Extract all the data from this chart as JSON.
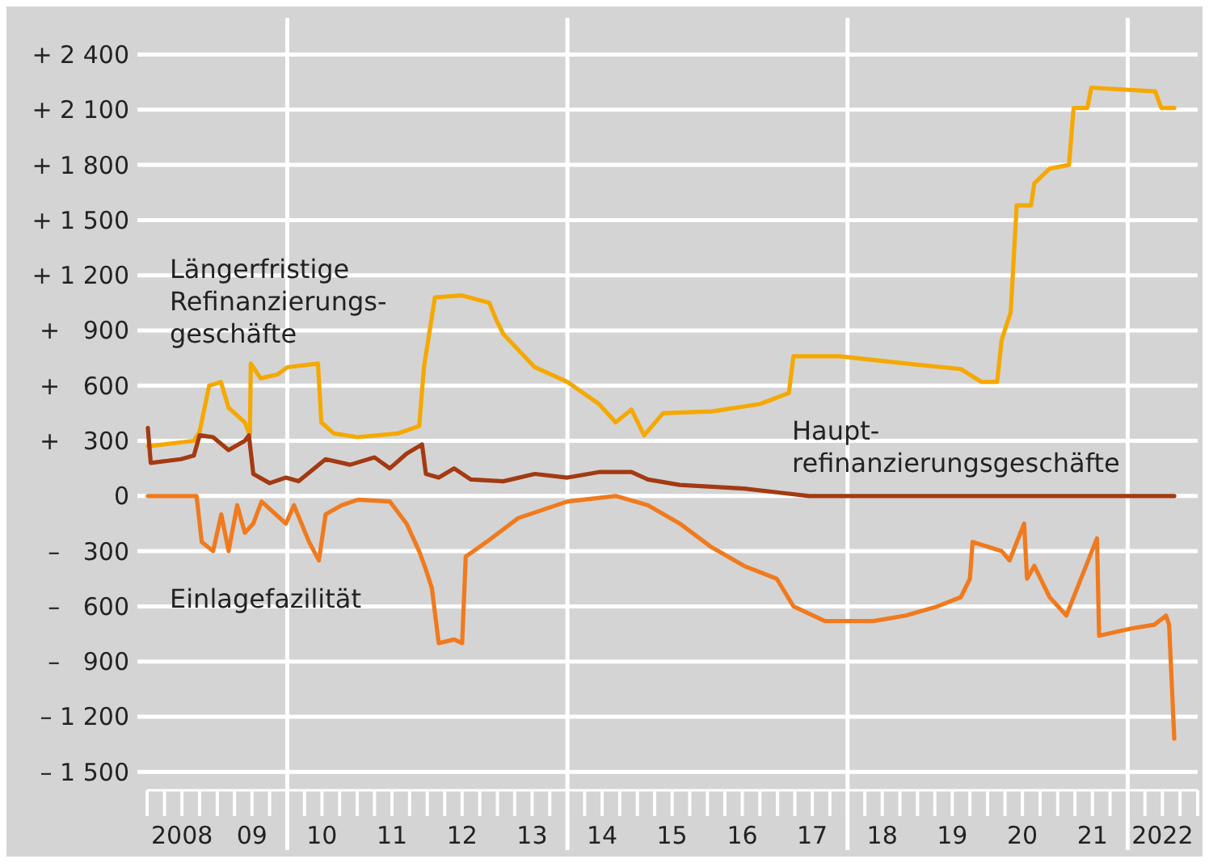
{
  "chart_data": {
    "type": "line",
    "xlim": [
      "2008-01-01",
      "2023-01-01"
    ],
    "ylim": [
      -1600,
      2600
    ],
    "yticks": [
      {
        "value": 2400,
        "label": "+ 2 400"
      },
      {
        "value": 2100,
        "label": "+ 2 100"
      },
      {
        "value": 1800,
        "label": "+ 1 800"
      },
      {
        "value": 1500,
        "label": "+ 1 500"
      },
      {
        "value": 1200,
        "label": "+ 1 200"
      },
      {
        "value": 900,
        "label": "+   900"
      },
      {
        "value": 600,
        "label": "+   600"
      },
      {
        "value": 300,
        "label": "+   300"
      },
      0,
      {
        "value": -300,
        "label": "–   300"
      },
      {
        "value": -600,
        "label": "–   600"
      },
      {
        "value": -900,
        "label": "–   900"
      },
      {
        "value": -1200,
        "label": "– 1 200"
      },
      {
        "value": -1500,
        "label": "– 1 500"
      }
    ],
    "xticks": [
      {
        "value": "2008-01-01",
        "label": null
      },
      {
        "value": "2008-04-01",
        "label": null
      },
      {
        "value": "2008-07-01",
        "label": "2008"
      },
      {
        "value": "2008-10-01",
        "label": null
      },
      {
        "value": "2009-01-01",
        "label": null
      },
      {
        "value": "2009-04-01",
        "label": null
      },
      {
        "value": "2009-07-01",
        "label": "09"
      },
      {
        "value": "2009-10-01",
        "label": null
      },
      {
        "value": "2010-01-01",
        "label": null
      },
      {
        "value": "2010-04-01",
        "label": null
      },
      {
        "value": "2010-07-01",
        "label": "10"
      },
      {
        "value": "2010-10-01",
        "label": null
      },
      {
        "value": "2011-01-01",
        "label": null
      },
      {
        "value": "2011-04-01",
        "label": null
      },
      {
        "value": "2011-07-01",
        "label": "11"
      },
      {
        "value": "2011-10-01",
        "label": null
      },
      {
        "value": "2012-01-01",
        "label": null
      },
      {
        "value": "2012-04-01",
        "label": null
      },
      {
        "value": "2012-07-01",
        "label": "12"
      },
      {
        "value": "2012-10-01",
        "label": null
      },
      {
        "value": "2013-01-01",
        "label": null
      },
      {
        "value": "2013-04-01",
        "label": null
      },
      {
        "value": "2013-07-01",
        "label": "13"
      },
      {
        "value": "2013-10-01",
        "label": null
      },
      {
        "value": "2014-01-01",
        "label": null
      },
      {
        "value": "2014-04-01",
        "label": null
      },
      {
        "value": "2014-07-01",
        "label": "14"
      },
      {
        "value": "2014-10-01",
        "label": null
      },
      {
        "value": "2015-01-01",
        "label": null
      },
      {
        "value": "2015-04-01",
        "label": null
      },
      {
        "value": "2015-07-01",
        "label": "15"
      },
      {
        "value": "2015-10-01",
        "label": null
      },
      {
        "value": "2016-01-01",
        "label": null
      },
      {
        "value": "2016-04-01",
        "label": null
      },
      {
        "value": "2016-07-01",
        "label": "16"
      },
      {
        "value": "2016-10-01",
        "label": null
      },
      {
        "value": "2017-01-01",
        "label": null
      },
      {
        "value": "2017-04-01",
        "label": null
      },
      {
        "value": "2017-07-01",
        "label": "17"
      },
      {
        "value": "2017-10-01",
        "label": null
      },
      {
        "value": "2018-01-01",
        "label": null
      },
      {
        "value": "2018-04-01",
        "label": null
      },
      {
        "value": "2018-07-01",
        "label": "18"
      },
      {
        "value": "2018-10-01",
        "label": null
      },
      {
        "value": "2019-01-01",
        "label": null
      },
      {
        "value": "2019-04-01",
        "label": null
      },
      {
        "value": "2019-07-01",
        "label": "19"
      },
      {
        "value": "2019-10-01",
        "label": null
      },
      {
        "value": "2020-01-01",
        "label": null
      },
      {
        "value": "2020-04-01",
        "label": null
      },
      {
        "value": "2020-07-01",
        "label": "20"
      },
      {
        "value": "2020-10-01",
        "label": null
      },
      {
        "value": "2021-01-01",
        "label": null
      },
      {
        "value": "2021-04-01",
        "label": null
      },
      {
        "value": "2021-07-01",
        "label": "21"
      },
      {
        "value": "2021-10-01",
        "label": null
      },
      {
        "value": "2022-01-01",
        "label": null
      },
      {
        "value": "2022-04-01",
        "label": null
      },
      {
        "value": "2022-07-01",
        "label": "2022"
      },
      {
        "value": "2022-10-01",
        "label": null
      },
      {
        "value": "2023-01-01",
        "label": null
      }
    ],
    "grid": "y",
    "ref_lines": [
      {
        "axis": "x",
        "value": "2010-01-01",
        "color": "#ffffff"
      },
      {
        "axis": "x",
        "value": "2014-01-01",
        "color": "#ffffff"
      },
      {
        "axis": "x",
        "value": "2018-01-01",
        "color": "#ffffff"
      },
      {
        "axis": "x",
        "value": "2022-01-01",
        "color": "#ffffff"
      }
    ],
    "series": [
      {
        "name": "Längerfristige Refinanzierungs-geschäfte",
        "color": "#f5a800",
        "x": [
          "2008-01-05",
          "2008-09-01",
          "2008-10-01",
          "2008-11-20",
          "2009-01-20",
          "2009-03-01",
          "2009-05-25",
          "2009-06-20",
          "2009-06-25",
          "2009-08-15",
          "2009-11-10",
          "2010-01-01",
          "2010-06-10",
          "2010-06-28",
          "2010-09-01",
          "2011-01-01",
          "2011-08-01",
          "2011-11-20",
          "2011-12-15",
          "2012-02-10",
          "2012-07-01",
          "2012-11-20",
          "2012-12-25",
          "2013-02-01",
          "2013-07-15",
          "2014-01-01",
          "2014-06-15",
          "2014-09-10",
          "2014-12-01",
          "2015-02-05",
          "2015-05-15",
          "2016-01-25",
          "2016-10-01",
          "2017-03-01",
          "2017-03-25",
          "2017-11-20",
          "2018-11-01",
          "2019-08-15",
          "2019-12-01",
          "2020-02-20",
          "2020-03-15",
          "2020-05-01",
          "2020-06-01",
          "2020-08-15",
          "2020-09-01",
          "2020-11-20",
          "2021-03-01",
          "2021-03-25",
          "2021-06-05",
          "2021-06-25",
          "2022-05-25",
          "2022-06-25",
          "2022-09-01"
        ],
        "values": [
          270,
          300,
          350,
          600,
          620,
          480,
          400,
          330,
          720,
          640,
          660,
          700,
          720,
          400,
          340,
          320,
          340,
          380,
          700,
          1080,
          1090,
          1050,
          960,
          880,
          700,
          620,
          500,
          400,
          470,
          330,
          450,
          460,
          500,
          560,
          760,
          760,
          720,
          690,
          620,
          620,
          850,
          1000,
          1580,
          1580,
          1700,
          1780,
          1800,
          2110,
          2110,
          2220,
          2200,
          2110,
          2110
        ]
      },
      {
        "name": "Haupt-refinanzierungsgeschäfte",
        "color": "#a33a12",
        "x": [
          "2008-01-05",
          "2008-01-20",
          "2008-06-25",
          "2008-09-01",
          "2008-10-01",
          "2008-12-10",
          "2009-03-01",
          "2009-05-25",
          "2009-06-15",
          "2009-07-08",
          "2009-10-01",
          "2009-12-25",
          "2010-03-01",
          "2010-07-20",
          "2010-11-25",
          "2011-04-01",
          "2011-06-20",
          "2011-09-15",
          "2011-12-05",
          "2011-12-25",
          "2012-03-01",
          "2012-05-20",
          "2012-08-15",
          "2013-02-01",
          "2013-07-15",
          "2014-01-01",
          "2014-06-15",
          "2014-12-01",
          "2015-02-25",
          "2015-08-10",
          "2016-01-25",
          "2016-07-10",
          "2016-12-28",
          "2017-06-15",
          "2018-05-15",
          "2022-09-01"
        ],
        "values": [
          370,
          180,
          200,
          220,
          330,
          320,
          250,
          300,
          330,
          120,
          70,
          100,
          80,
          200,
          170,
          210,
          150,
          230,
          280,
          120,
          100,
          150,
          90,
          80,
          120,
          100,
          130,
          130,
          90,
          60,
          50,
          40,
          20,
          0,
          0,
          0
        ]
      },
      {
        "name": "Einlagefazilität",
        "color": "#f07a1e",
        "x": [
          "2008-01-05",
          "2008-09-15",
          "2008-10-12",
          "2008-12-10",
          "2009-01-22",
          "2009-03-01",
          "2009-04-15",
          "2009-05-25",
          "2009-07-08",
          "2009-08-20",
          "2009-12-25",
          "2010-02-05",
          "2010-04-25",
          "2010-06-15",
          "2010-07-20",
          "2010-10-12",
          "2011-01-05",
          "2011-06-20",
          "2011-09-15",
          "2011-11-20",
          "2011-12-25",
          "2012-01-25",
          "2012-03-01",
          "2012-05-20",
          "2012-07-01",
          "2012-07-20",
          "2012-11-05",
          "2013-04-20",
          "2014-01-01",
          "2014-09-10",
          "2015-02-25",
          "2015-08-10",
          "2016-01-25",
          "2016-07-10",
          "2016-12-28",
          "2017-03-25",
          "2017-09-05",
          "2018-05-15",
          "2018-11-01",
          "2019-04-15",
          "2019-08-15",
          "2019-10-01",
          "2019-10-15",
          "2020-03-15",
          "2020-04-25",
          "2020-07-10",
          "2020-07-25",
          "2020-09-01",
          "2020-11-20",
          "2021-02-15",
          "2021-07-25",
          "2021-08-05",
          "2022-01-20",
          "2022-05-20",
          "2022-07-20",
          "2022-08-05",
          "2022-09-01"
        ],
        "values": [
          0,
          0,
          -250,
          -300,
          -100,
          -300,
          -50,
          -200,
          -150,
          -30,
          -150,
          -50,
          -250,
          -350,
          -100,
          -50,
          -20,
          -30,
          -150,
          -300,
          -400,
          -500,
          -800,
          -780,
          -800,
          -330,
          -250,
          -120,
          -30,
          0,
          -50,
          -150,
          -280,
          -380,
          -450,
          -600,
          -680,
          -680,
          -650,
          -600,
          -550,
          -450,
          -250,
          -300,
          -350,
          -150,
          -450,
          -380,
          -550,
          -650,
          -230,
          -760,
          -720,
          -700,
          -650,
          -700,
          -1320
        ]
      }
    ]
  }
}
